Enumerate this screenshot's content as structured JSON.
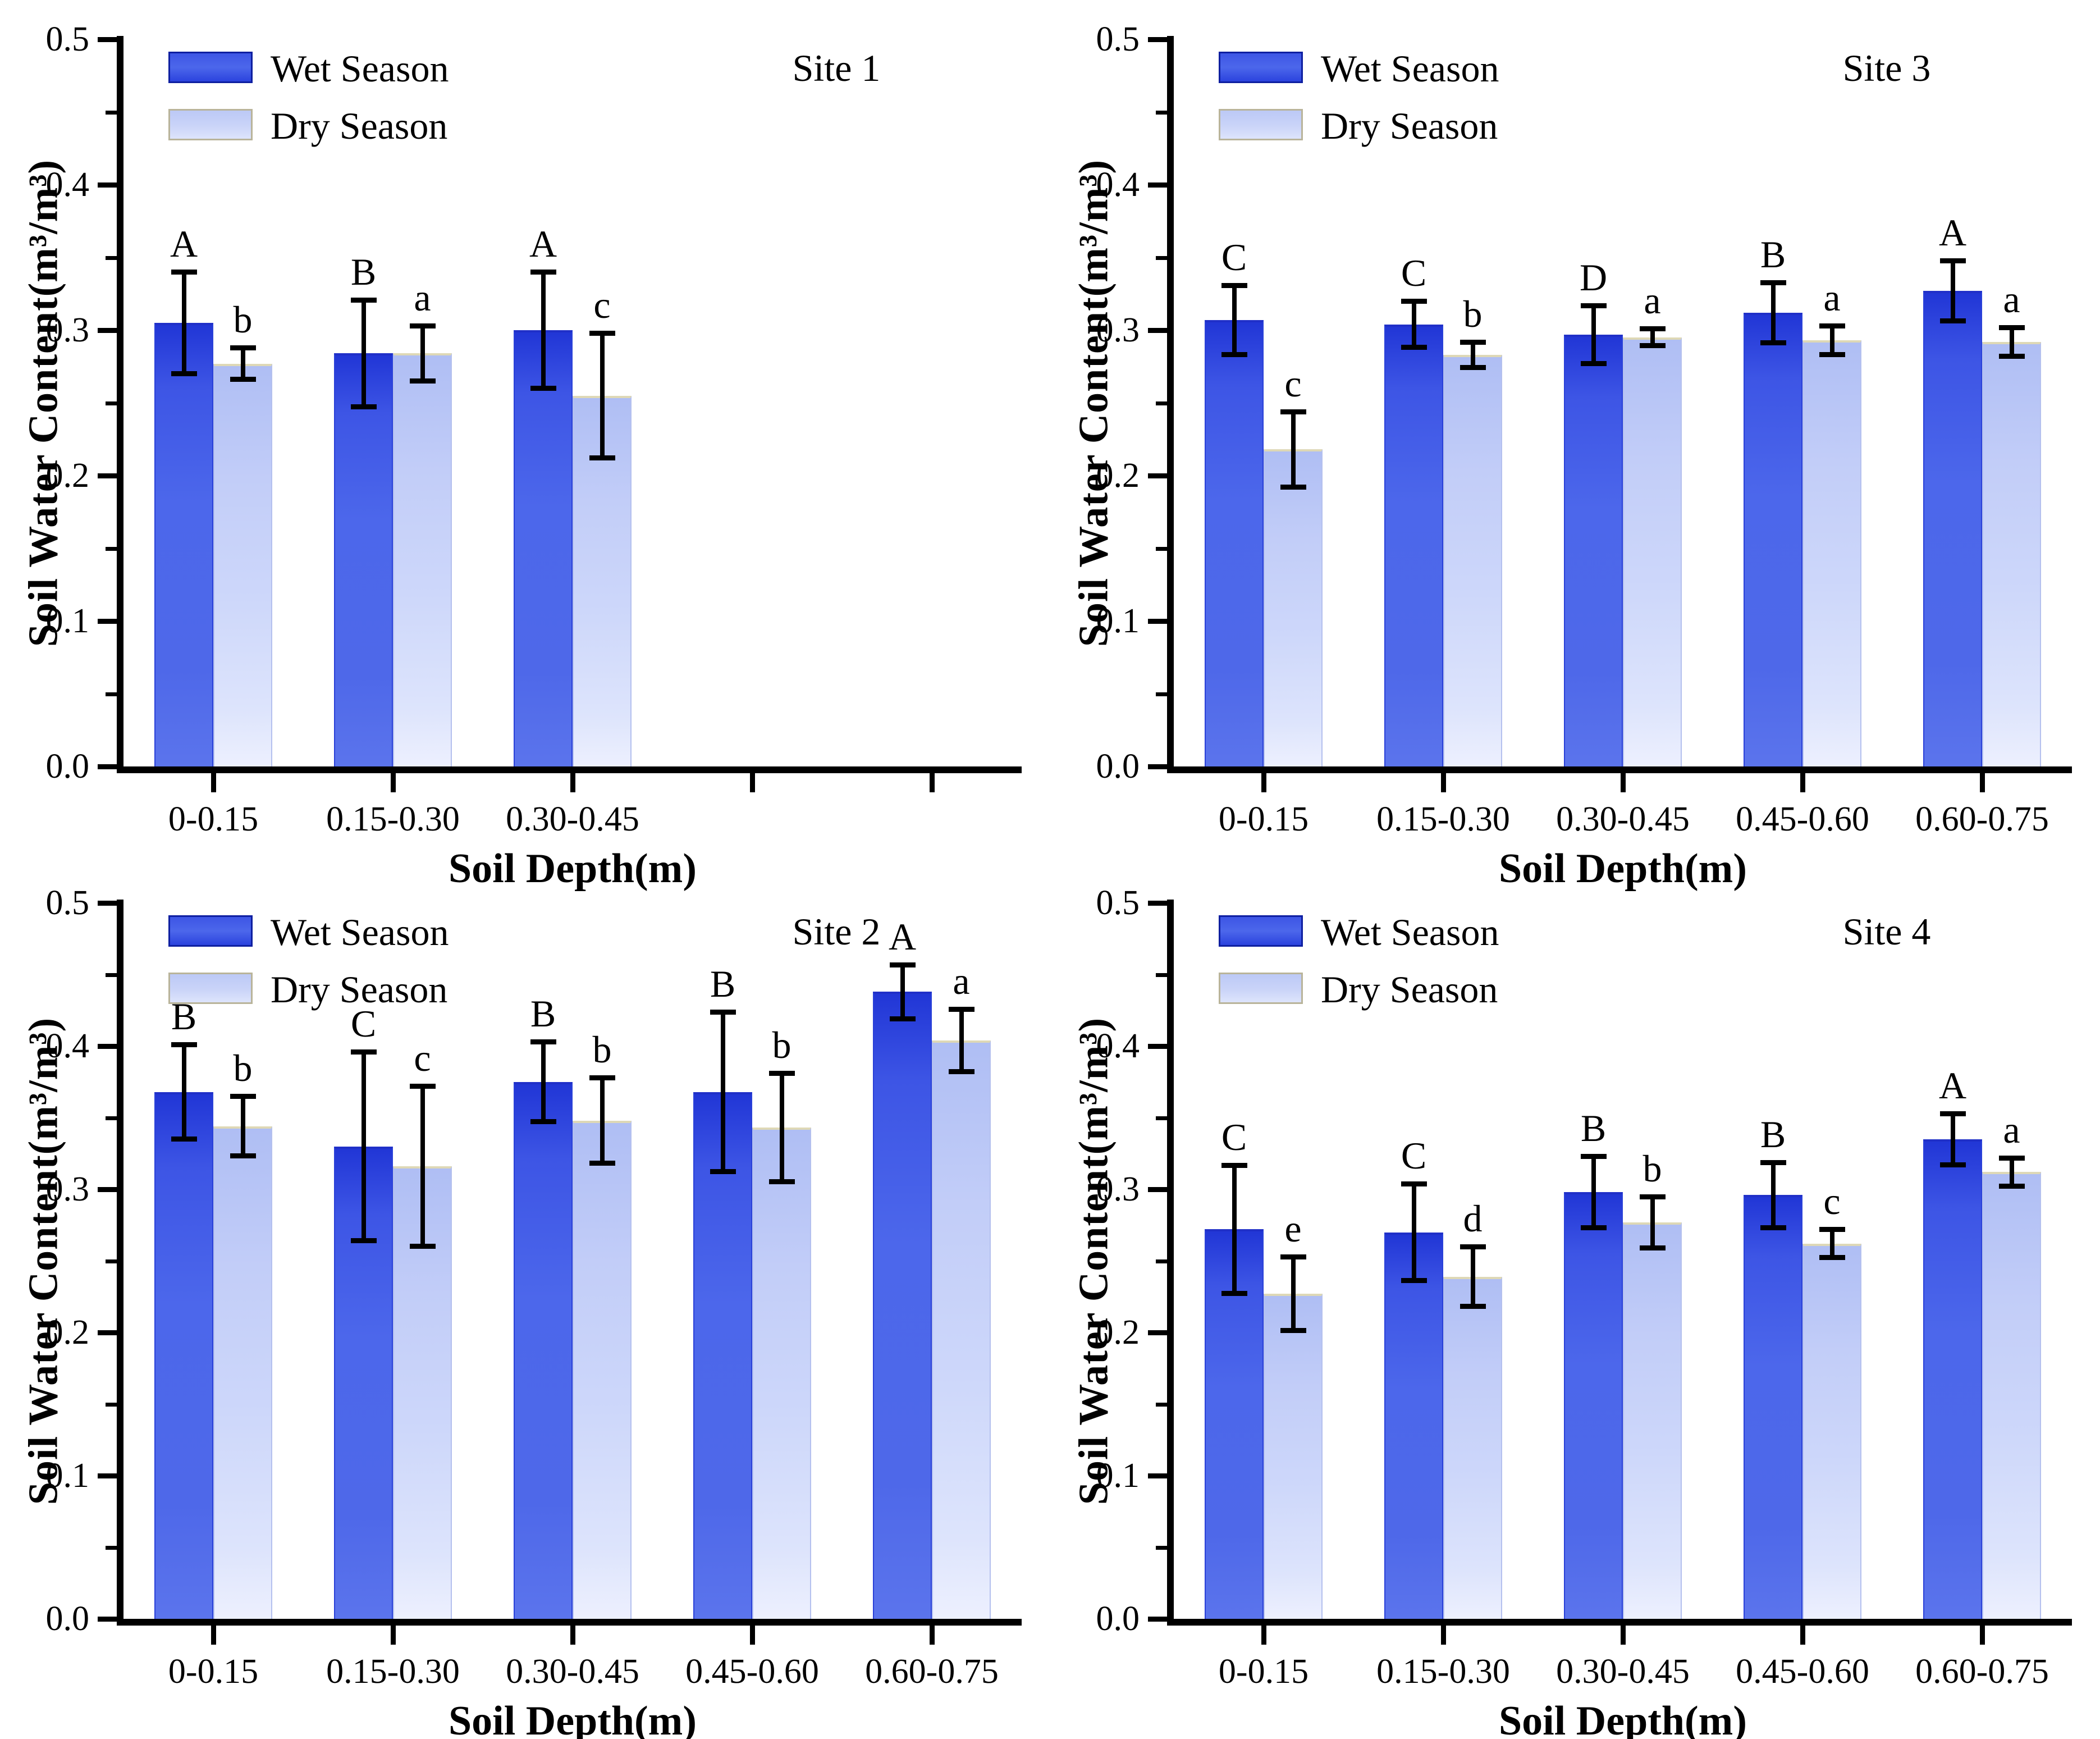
{
  "figure": {
    "ylabel": "Soil Water Content(m³/m³)",
    "xlabel": "Soil Depth(m)",
    "legend": [
      "Wet Season",
      "Dry Season"
    ],
    "ytick_labels": [
      "0.0",
      "0.1",
      "0.2",
      "0.3",
      "0.4",
      "0.5"
    ],
    "ylim": [
      0,
      0.5
    ],
    "colors": {
      "wet": "#4161E8",
      "dry": "#C9D3F8",
      "axis": "#000000",
      "wet_edge": "#2030C8",
      "dry_edge": "#DED8B6"
    }
  },
  "chart_data": [
    {
      "type": "bar",
      "title": "Site 1",
      "xlabel": "Soil Depth(m)",
      "ylabel": "Soil Water Content(m³/m³)",
      "ylim": [
        0,
        0.5
      ],
      "legend_position": "top-left",
      "grid": false,
      "categories": [
        "0-0.15",
        "0.15-0.30",
        "0.30-0.45",
        "",
        ""
      ],
      "series": [
        {
          "name": "Wet Season",
          "color": "#4161E8",
          "values": [
            0.305,
            0.284,
            0.3,
            null,
            null
          ],
          "errors": [
            0.035,
            0.037,
            0.04,
            null,
            null
          ],
          "letters": [
            "A",
            "B",
            "A",
            null,
            null
          ]
        },
        {
          "name": "Dry Season",
          "color": "#C9D3F8",
          "values": [
            0.277,
            0.284,
            0.255,
            null,
            null
          ],
          "errors": [
            0.011,
            0.019,
            0.043,
            null,
            null
          ],
          "letters": [
            "b",
            "a",
            "c",
            null,
            null
          ]
        }
      ]
    },
    {
      "type": "bar",
      "title": "Site 3",
      "xlabel": "Soil Depth(m)",
      "ylabel": "Soil Water Content(m³/m³)",
      "ylim": [
        0,
        0.5
      ],
      "legend_position": "top-left",
      "grid": false,
      "categories": [
        "0-0.15",
        "0.15-0.30",
        "0.30-0.45",
        "0.45-0.60",
        "0.60-0.75"
      ],
      "series": [
        {
          "name": "Wet Season",
          "color": "#4161E8",
          "values": [
            0.307,
            0.304,
            0.297,
            0.312,
            0.327
          ],
          "errors": [
            0.024,
            0.016,
            0.02,
            0.021,
            0.021
          ],
          "letters": [
            "C",
            "C",
            "D",
            "B",
            "A"
          ]
        },
        {
          "name": "Dry Season",
          "color": "#C9D3F8",
          "values": [
            0.218,
            0.283,
            0.295,
            0.293,
            0.292
          ],
          "errors": [
            0.026,
            0.009,
            0.006,
            0.01,
            0.01
          ],
          "letters": [
            "c",
            "b",
            "a",
            "a",
            "a"
          ]
        }
      ]
    },
    {
      "type": "bar",
      "title": "Site 2",
      "xlabel": "Soil Depth(m)",
      "ylabel": "Soil Water Content(m³/m³)",
      "ylim": [
        0,
        0.5
      ],
      "legend_position": "top-left",
      "grid": false,
      "categories": [
        "0-0.15",
        "0.15-0.30",
        "0.30-0.45",
        "0.45-0.60",
        "0.60-0.75"
      ],
      "series": [
        {
          "name": "Wet Season",
          "color": "#4161E8",
          "values": [
            0.368,
            0.33,
            0.375,
            0.368,
            0.438
          ],
          "errors": [
            0.033,
            0.066,
            0.028,
            0.056,
            0.019
          ],
          "letters": [
            "B",
            "C",
            "B",
            "B",
            "A"
          ]
        },
        {
          "name": "Dry Season",
          "color": "#C9D3F8",
          "values": [
            0.344,
            0.316,
            0.348,
            0.343,
            0.404
          ],
          "errors": [
            0.021,
            0.056,
            0.03,
            0.038,
            0.022
          ],
          "letters": [
            "b",
            "c",
            "b",
            "b",
            "a"
          ]
        }
      ]
    },
    {
      "type": "bar",
      "title": "Site 4",
      "xlabel": "Soil Depth(m)",
      "ylabel": "Soil Water Content(m³/m³)",
      "ylim": [
        0,
        0.5
      ],
      "legend_position": "top-left",
      "grid": false,
      "categories": [
        "0-0.15",
        "0.15-0.30",
        "0.30-0.45",
        "0.45-0.60",
        "0.60-0.75"
      ],
      "series": [
        {
          "name": "Wet Season",
          "color": "#4161E8",
          "values": [
            0.272,
            0.27,
            0.298,
            0.296,
            0.335
          ],
          "errors": [
            0.045,
            0.034,
            0.025,
            0.023,
            0.018
          ],
          "letters": [
            "C",
            "C",
            "B",
            "B",
            "A"
          ]
        },
        {
          "name": "Dry Season",
          "color": "#C9D3F8",
          "values": [
            0.227,
            0.239,
            0.277,
            0.262,
            0.312
          ],
          "errors": [
            0.026,
            0.021,
            0.018,
            0.01,
            0.01
          ],
          "letters": [
            "e",
            "d",
            "b",
            "c",
            "a"
          ]
        }
      ]
    }
  ]
}
